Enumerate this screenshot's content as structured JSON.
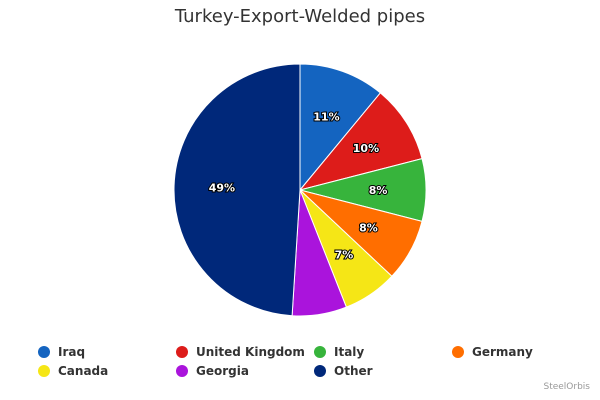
{
  "chart_data": {
    "type": "pie",
    "title": "Turkey-Export-Welded pipes",
    "slices": [
      {
        "label": "Iraq",
        "value": 11,
        "display": "11%",
        "color": "#1464c0"
      },
      {
        "label": "United Kingdom",
        "value": 10,
        "display": "10%",
        "color": "#dd1c1a"
      },
      {
        "label": "Italy",
        "value": 8,
        "display": "8%",
        "color": "#37b43c"
      },
      {
        "label": "Germany",
        "value": 8,
        "display": "8%",
        "color": "#ff6e00"
      },
      {
        "label": "Canada",
        "value": 7,
        "display": "7%",
        "color": "#f5e616"
      },
      {
        "label": "Georgia",
        "value": 7,
        "display": "",
        "color": "#aa14dc"
      },
      {
        "label": "Other",
        "value": 49,
        "display": "49%",
        "color": "#00287a"
      }
    ],
    "legend_position": "bottom"
  },
  "credits": "SteelOrbis"
}
